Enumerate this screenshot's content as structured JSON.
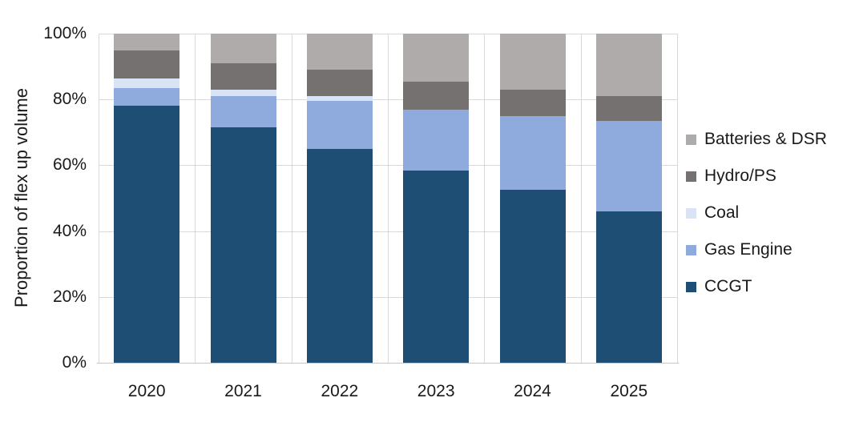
{
  "chart_data": {
    "type": "bar",
    "stacked": true,
    "title": "",
    "xlabel": "",
    "ylabel": "Proportion of flex up volume",
    "categories": [
      "2020",
      "2021",
      "2022",
      "2023",
      "2024",
      "2025"
    ],
    "series": [
      {
        "name": "CCGT",
        "color": "#1F4E74",
        "values": [
          78,
          71.5,
          65,
          58.5,
          52.5,
          46
        ]
      },
      {
        "name": "Gas Engine",
        "color": "#8FAADC",
        "values": [
          5.5,
          9.5,
          14.5,
          18.5,
          22.5,
          27.5
        ]
      },
      {
        "name": "Coal",
        "color": "#DAE3F3",
        "values": [
          3,
          2,
          1.5,
          0,
          0,
          0
        ]
      },
      {
        "name": "Hydro/PS",
        "color": "#767171",
        "values": [
          8.5,
          8,
          8,
          8.5,
          8,
          7.5
        ]
      },
      {
        "name": "Batteries & DSR",
        "color": "#AFABAB",
        "values": [
          5,
          9,
          11,
          14.5,
          17,
          19
        ]
      }
    ],
    "ylim": [
      0,
      100
    ],
    "ytick_values": [
      0,
      20,
      40,
      60,
      80,
      100
    ],
    "ytick_labels": [
      "0%",
      "20%",
      "40%",
      "60%",
      "80%",
      "100%"
    ],
    "legend_position": "right",
    "legend_order_top_to_bottom": [
      "Batteries & DSR",
      "Hydro/PS",
      "Coal",
      "Gas Engine",
      "CCGT"
    ],
    "grid": {
      "horizontal": true,
      "vertical": "between-categories",
      "color": "#D9D9D9"
    }
  }
}
